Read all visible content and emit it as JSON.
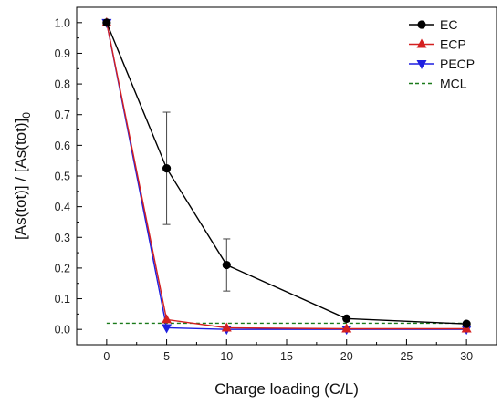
{
  "chart_data": {
    "type": "line",
    "title": "",
    "xlabel": "Charge loading (C/L)",
    "ylabel_main": "[As(tot)] / [As(tot)]",
    "ylabel_subscript": "0",
    "xlim": [
      -2.5,
      32.5
    ],
    "ylim": [
      -0.05,
      1.05
    ],
    "x_ticks": [
      0,
      5,
      10,
      15,
      20,
      25,
      30
    ],
    "x_tick_labels": [
      "0",
      "5",
      "10",
      "15",
      "20",
      "25",
      "30"
    ],
    "y_ticks": [
      0.0,
      0.1,
      0.2,
      0.3,
      0.4,
      0.5,
      0.6,
      0.7,
      0.8,
      0.9,
      1.0
    ],
    "y_tick_labels": [
      "0.0",
      "0.1",
      "0.2",
      "0.3",
      "0.4",
      "0.5",
      "0.6",
      "0.7",
      "0.8",
      "0.9",
      "1.0"
    ],
    "grid": false,
    "legend_position": "top-right",
    "series": [
      {
        "name": "EC",
        "color": "#000000",
        "marker": "circle",
        "x": [
          0,
          5,
          10,
          20,
          30
        ],
        "y": [
          1.0,
          0.525,
          0.21,
          0.035,
          0.018
        ],
        "error": [
          0,
          0.183,
          0.085,
          0,
          0
        ]
      },
      {
        "name": "ECP",
        "color": "#d42020",
        "marker": "triangle-up",
        "x": [
          0,
          5,
          10,
          20,
          30
        ],
        "y": [
          1.0,
          0.032,
          0.005,
          0.002,
          0.002
        ],
        "error": [
          0,
          0,
          0,
          0,
          0
        ]
      },
      {
        "name": "PECP",
        "color": "#1f1fe0",
        "marker": "triangle-down",
        "x": [
          0,
          5,
          10,
          20,
          30
        ],
        "y": [
          1.0,
          0.005,
          0.0,
          0.0,
          0.0
        ],
        "error": [
          0,
          0,
          0,
          0,
          0
        ]
      },
      {
        "name": "MCL",
        "color": "#1a7a1a",
        "marker": "none",
        "dashed": true,
        "x": [
          0,
          30
        ],
        "y": [
          0.02,
          0.02
        ]
      }
    ]
  }
}
